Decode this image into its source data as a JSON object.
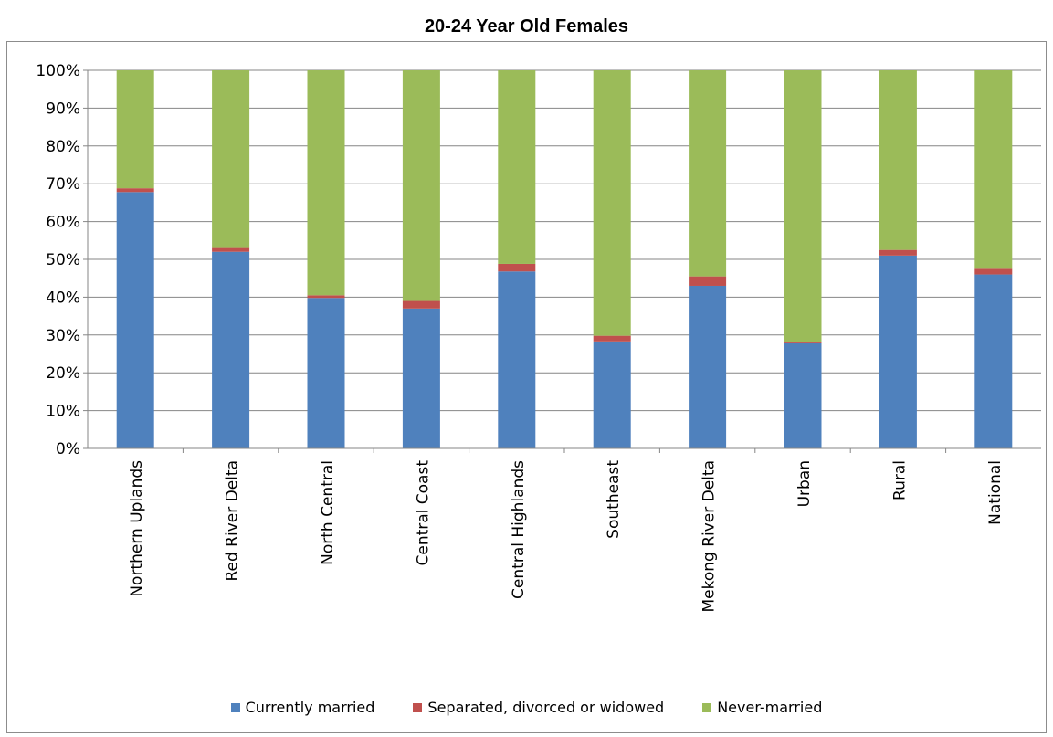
{
  "chart_data": {
    "type": "bar",
    "stacked": true,
    "title": "20-24 Year Old Females",
    "xlabel": "",
    "ylabel": "",
    "ylim": [
      0,
      100
    ],
    "yticks": [
      "0%",
      "10%",
      "20%",
      "30%",
      "40%",
      "50%",
      "60%",
      "70%",
      "80%",
      "90%",
      "100%"
    ],
    "grid": true,
    "legend_position": "bottom",
    "categories": [
      "Northern Uplands",
      "Red River Delta",
      "North Central",
      "Central Coast",
      "Central Highlands",
      "Southeast",
      "Mekong River Delta",
      "Urban",
      "Rural",
      "National"
    ],
    "series": [
      {
        "name": "Currently married",
        "color": "#4f81bd",
        "values": [
          67.8,
          52.0,
          39.8,
          37.0,
          46.8,
          28.3,
          43.0,
          27.8,
          51.0,
          46.0
        ]
      },
      {
        "name": "Separated, divorced or widowed",
        "color": "#c0504d",
        "values": [
          1.0,
          1.0,
          0.7,
          2.0,
          2.0,
          1.5,
          2.5,
          0.3,
          1.5,
          1.5
        ]
      },
      {
        "name": "Never-married",
        "color": "#9bbb59",
        "values": [
          31.2,
          47.0,
          59.5,
          61.0,
          51.2,
          70.2,
          54.5,
          71.9,
          47.5,
          52.5
        ]
      }
    ]
  }
}
